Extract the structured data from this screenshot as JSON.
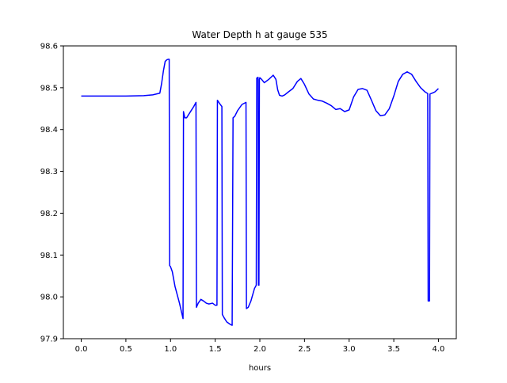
{
  "chart_data": {
    "type": "line",
    "title": "Water Depth h at gauge 535",
    "xlabel": "hours",
    "ylabel": "",
    "xlim": [
      -0.2,
      4.2
    ],
    "ylim": [
      97.9,
      98.6
    ],
    "xticks": [
      0.0,
      0.5,
      1.0,
      1.5,
      2.0,
      2.5,
      3.0,
      3.5,
      4.0
    ],
    "xtick_labels": [
      "0.0",
      "0.5",
      "1.0",
      "1.5",
      "2.0",
      "2.5",
      "3.0",
      "3.5",
      "4.0"
    ],
    "yticks": [
      97.9,
      98.0,
      98.1,
      98.2,
      98.3,
      98.4,
      98.5,
      98.6
    ],
    "ytick_labels": [
      "97.9",
      "98.0",
      "98.1",
      "98.2",
      "98.3",
      "98.4",
      "98.5",
      "98.6"
    ],
    "grid": false,
    "series": [
      {
        "name": "",
        "color": "#0000ff",
        "x": [
          0.0,
          0.5,
          0.7,
          0.8,
          0.88,
          0.9,
          0.92,
          0.94,
          0.96,
          0.975,
          0.985,
          0.99,
          1.0,
          1.02,
          1.05,
          1.1,
          1.14,
          1.145,
          1.16,
          1.18,
          1.2,
          1.23,
          1.26,
          1.285,
          1.29,
          1.31,
          1.34,
          1.37,
          1.4,
          1.43,
          1.47,
          1.5,
          1.52,
          1.525,
          1.55,
          1.575,
          1.58,
          1.6,
          1.63,
          1.67,
          1.69,
          1.7,
          1.72,
          1.75,
          1.8,
          1.845,
          1.85,
          1.87,
          1.9,
          1.94,
          1.96,
          1.965,
          1.98,
          1.985,
          1.99,
          1.995,
          2.0,
          2.02,
          2.05,
          2.1,
          2.15,
          2.18,
          2.2,
          2.22,
          2.25,
          2.28,
          2.32,
          2.37,
          2.42,
          2.46,
          2.5,
          2.55,
          2.6,
          2.65,
          2.7,
          2.75,
          2.8,
          2.85,
          2.9,
          2.95,
          3.0,
          3.05,
          3.1,
          3.15,
          3.2,
          3.25,
          3.3,
          3.35,
          3.4,
          3.45,
          3.5,
          3.55,
          3.6,
          3.65,
          3.7,
          3.75,
          3.8,
          3.85,
          3.88,
          3.885,
          3.9,
          3.905,
          3.93,
          3.96,
          4.0
        ],
        "y": [
          98.48,
          98.48,
          98.481,
          98.483,
          98.487,
          98.51,
          98.54,
          98.563,
          98.567,
          98.568,
          98.568,
          98.075,
          98.072,
          98.06,
          98.025,
          97.985,
          97.948,
          98.443,
          98.428,
          98.428,
          98.435,
          98.445,
          98.455,
          98.465,
          97.975,
          97.985,
          97.994,
          97.99,
          97.985,
          97.983,
          97.985,
          97.98,
          97.98,
          98.47,
          98.462,
          98.455,
          97.958,
          97.95,
          97.94,
          97.934,
          97.932,
          98.428,
          98.432,
          98.445,
          98.46,
          98.465,
          97.972,
          97.975,
          97.99,
          98.02,
          98.028,
          98.523,
          98.525,
          98.028,
          98.028,
          98.52,
          98.524,
          98.52,
          98.512,
          98.52,
          98.53,
          98.52,
          98.495,
          98.482,
          98.48,
          98.483,
          98.49,
          98.498,
          98.515,
          98.522,
          98.508,
          98.485,
          98.473,
          98.47,
          98.468,
          98.463,
          98.457,
          98.448,
          98.45,
          98.443,
          98.447,
          98.478,
          98.496,
          98.498,
          98.494,
          98.47,
          98.445,
          98.433,
          98.435,
          98.45,
          98.48,
          98.515,
          98.532,
          98.538,
          98.532,
          98.515,
          98.5,
          98.49,
          98.486,
          97.99,
          97.99,
          98.485,
          98.487,
          98.49,
          98.498
        ]
      }
    ]
  }
}
